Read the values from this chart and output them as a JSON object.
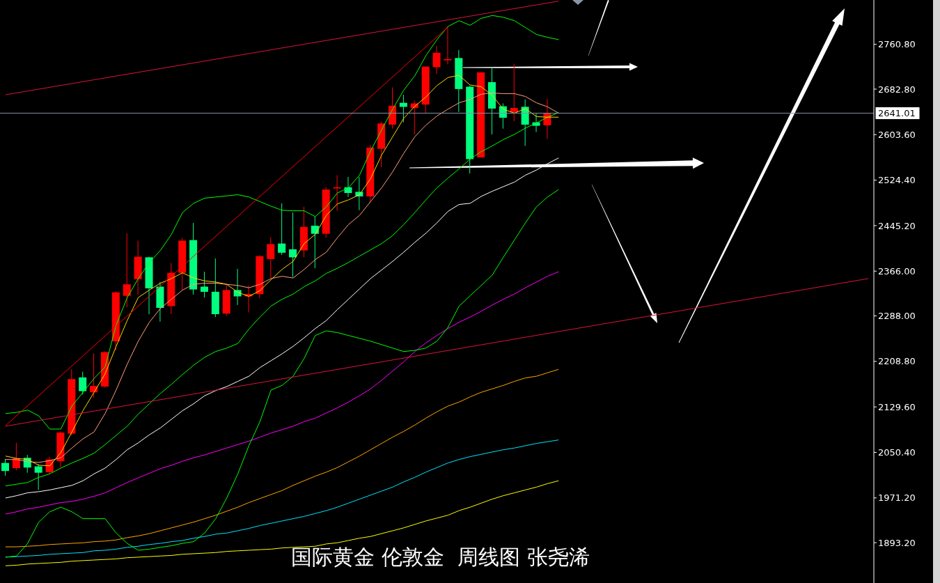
{
  "chart_data": {
    "type": "candlestick",
    "title": "国际黄金 伦敦金  周线图 张尧浠",
    "tick_labels": "y",
    "categories": [
      null,
      null,
      null,
      null,
      null,
      null,
      null,
      null,
      null,
      null,
      null,
      null,
      null,
      null,
      null,
      null,
      null,
      null,
      null,
      null,
      null,
      null,
      null,
      null,
      null,
      null,
      null,
      null,
      null,
      null,
      null,
      null,
      null,
      null,
      null,
      null,
      null,
      null,
      null,
      null,
      null,
      null,
      null,
      null,
      null,
      null,
      null,
      null,
      null,
      null,
      null,
      null,
      null,
      null,
      null,
      null,
      null,
      null,
      null,
      null,
      null,
      null,
      null,
      null,
      null,
      null,
      null,
      null,
      null,
      null,
      null,
      null,
      null,
      null,
      null,
      null,
      null,
      null,
      null
    ],
    "ohlc": [
      [
        2032,
        2039,
        2010,
        2018
      ],
      [
        2023,
        2067,
        2019,
        2040
      ],
      [
        2041,
        2046,
        2015,
        2024
      ],
      [
        2026,
        2030,
        1985,
        2015
      ],
      [
        2016,
        2043,
        2013,
        2038
      ],
      [
        2035,
        2087,
        2024,
        2085
      ],
      [
        2083,
        2195,
        2080,
        2178
      ],
      [
        2181,
        2191,
        2151,
        2157
      ],
      [
        2155,
        2223,
        2146,
        2166
      ],
      [
        2165,
        2226,
        2163,
        2225
      ],
      [
        2244,
        2331,
        2228,
        2329
      ],
      [
        2323,
        2432,
        2303,
        2343
      ],
      [
        2352,
        2419,
        2325,
        2391
      ],
      [
        2390,
        2391,
        2291,
        2336
      ],
      [
        2339,
        2347,
        2278,
        2302
      ],
      [
        2305,
        2380,
        2291,
        2363
      ],
      [
        2363,
        2424,
        2333,
        2419
      ],
      [
        2420,
        2450,
        2325,
        2334
      ],
      [
        2339,
        2365,
        2320,
        2330
      ],
      [
        2330,
        2388,
        2286,
        2291
      ],
      [
        2292,
        2342,
        2288,
        2333
      ],
      [
        2333,
        2370,
        2307,
        2322
      ],
      [
        2322,
        2341,
        2294,
        2326
      ],
      [
        2326,
        2394,
        2319,
        2392
      ],
      [
        2387,
        2425,
        2354,
        2413
      ],
      [
        2414,
        2484,
        2394,
        2398
      ],
      [
        2404,
        2468,
        2356,
        2390
      ],
      [
        2402,
        2478,
        2390,
        2443
      ],
      [
        2445,
        2461,
        2371,
        2431
      ],
      [
        2431,
        2512,
        2424,
        2508
      ],
      [
        2510,
        2533,
        2471,
        2512
      ],
      [
        2512,
        2530,
        2495,
        2502
      ],
      [
        2504,
        2530,
        2472,
        2496
      ],
      [
        2496,
        2586,
        2485,
        2581
      ],
      [
        2579,
        2626,
        2547,
        2623
      ],
      [
        2621,
        2686,
        2614,
        2654
      ],
      [
        2659,
        2673,
        2625,
        2652
      ],
      [
        2650,
        2663,
        2604,
        2658
      ],
      [
        2656,
        2723,
        2641,
        2722
      ],
      [
        2721,
        2758,
        2709,
        2746
      ],
      [
        2733,
        2791,
        2726,
        2735
      ],
      [
        2737,
        2751,
        2643,
        2683
      ],
      [
        2687,
        2689,
        2536,
        2561
      ],
      [
        2564,
        2712,
        2564,
        2712
      ],
      [
        2695,
        2721,
        2604,
        2649
      ],
      [
        2653,
        2658,
        2614,
        2633
      ],
      [
        2643,
        2727,
        2627,
        2650
      ],
      [
        2652,
        2665,
        2584,
        2621
      ],
      [
        2625,
        2640,
        2608,
        2619
      ],
      [
        2620,
        2666,
        2596,
        2641
      ],
      null,
      null,
      null,
      null,
      null,
      null,
      null,
      null,
      null,
      null,
      null,
      null,
      null,
      null,
      null,
      null,
      null,
      null,
      null,
      null,
      null,
      null,
      null,
      null,
      null,
      null,
      null,
      null,
      null
    ],
    "colors": [
      "#00ff7f",
      "#ff0000",
      "#00ff7f",
      "#00ff7f",
      "#ff0000",
      "#ff0000",
      "#ff0000",
      "#00ff7f",
      "#ff0000",
      "#ff0000",
      "#ff0000",
      "#ff0000",
      "#ff0000",
      "#00ff7f",
      "#00ff7f",
      "#ff0000",
      "#ff0000",
      "#00ff7f",
      "#00ff7f",
      "#00ff7f",
      "#ff0000",
      "#00ff7f",
      "#ff0000",
      "#ff0000",
      "#ff0000",
      "#00ff7f",
      "#00ff7f",
      "#ff0000",
      "#00ff7f",
      "#ff0000",
      "#ff0000",
      "#00ff7f",
      "#00ff7f",
      "#ff0000",
      "#ff0000",
      "#ff0000",
      "#00ff7f",
      "#ff0000",
      "#ff0000",
      "#ff0000",
      "#ff0000",
      "#00ff7f",
      "#00ff7f",
      "#ff0000",
      "#00ff7f",
      "#00ff7f",
      "#ff0000",
      "#00ff7f",
      "#00ff7f",
      "#ff0000",
      null,
      null,
      null,
      null,
      null,
      null,
      null,
      null,
      null,
      null,
      null,
      null,
      null,
      null,
      null,
      null,
      null,
      null,
      null,
      null,
      null,
      null,
      null,
      null,
      null,
      null,
      null,
      null,
      null
    ],
    "series": [
      {
        "type": "line",
        "color": "#ffff00",
        "values": [
          1853,
          1854,
          1856,
          1857,
          1858,
          1859,
          1861,
          1862,
          1863,
          1864,
          1865,
          1867,
          1868,
          1869,
          1870,
          1871,
          1873,
          1874,
          1875,
          1876,
          1878,
          1879,
          1880,
          1881,
          1882,
          1884,
          1885,
          1886,
          1887,
          1891,
          1893,
          1897,
          1901,
          1904,
          1909,
          1914,
          1919,
          1925,
          1931,
          1936,
          1941,
          1949,
          1955,
          1962,
          1969,
          1975,
          1980,
          1985,
          1990,
          1996,
          2001,
          null,
          null,
          null,
          null,
          null,
          null,
          null,
          null,
          null,
          null,
          null,
          null,
          null,
          null,
          null,
          null,
          null,
          null,
          null,
          null,
          null,
          null,
          null,
          null,
          null,
          null,
          null,
          null
        ]
      },
      {
        "type": "line",
        "color": "#00e5ff",
        "values": [
          1868,
          1869,
          1870,
          1871,
          1873,
          1874,
          1875,
          1876,
          1879,
          1880,
          1882,
          1885,
          1887,
          1890,
          1892,
          1895,
          1897,
          1901,
          1904,
          1908,
          1910,
          1914,
          1918,
          1923,
          1927,
          1931,
          1935,
          1939,
          1944,
          1949,
          1955,
          1962,
          1969,
          1976,
          1983,
          1990,
          1999,
          2007,
          2016,
          2024,
          2032,
          2038,
          2043,
          2047,
          2051,
          2055,
          2058,
          2062,
          2066,
          2069,
          2072,
          null,
          null,
          null,
          null,
          null,
          null,
          null,
          null,
          null,
          null,
          null,
          null,
          null,
          null,
          null,
          null,
          null,
          null,
          null,
          null,
          null,
          null,
          null,
          null,
          null,
          null,
          null,
          null
        ]
      },
      {
        "type": "line",
        "color": "#ffa500",
        "values": [
          1886,
          1886,
          1887,
          1888,
          1890,
          1891,
          1892,
          1893,
          1895,
          1896,
          1898,
          1902,
          1905,
          1909,
          1914,
          1919,
          1924,
          1929,
          1935,
          1941,
          1948,
          1955,
          1963,
          1970,
          1977,
          1984,
          1993,
          2001,
          2009,
          2016,
          2024,
          2034,
          2044,
          2055,
          2066,
          2077,
          2087,
          2098,
          2110,
          2121,
          2131,
          2138,
          2147,
          2155,
          2161,
          2167,
          2174,
          2180,
          2183,
          2189,
          2195,
          null,
          null,
          null,
          null,
          null,
          null,
          null,
          null,
          null,
          null,
          null,
          null,
          null,
          null,
          null,
          null,
          null,
          null,
          null,
          null,
          null,
          null,
          null,
          null,
          null,
          null,
          null,
          null
        ]
      },
      {
        "type": "line",
        "color": "#ff00ff",
        "values": [
          1943,
          1947,
          1952,
          1955,
          1959,
          1963,
          1965,
          1969,
          1974,
          1980,
          1989,
          1998,
          2006,
          2014,
          2022,
          2028,
          2035,
          2041,
          2046,
          2052,
          2058,
          2064,
          2070,
          2077,
          2084,
          2090,
          2096,
          2104,
          2110,
          2119,
          2128,
          2138,
          2149,
          2161,
          2176,
          2192,
          2208,
          2226,
          2241,
          2254,
          2266,
          2277,
          2286,
          2296,
          2307,
          2317,
          2326,
          2337,
          2347,
          2357,
          2365,
          null,
          null,
          null,
          null,
          null,
          null,
          null,
          null,
          null,
          null,
          null,
          null,
          null,
          null,
          null,
          null,
          null,
          null,
          null,
          null,
          null,
          null,
          null,
          null,
          null,
          null,
          null,
          null
        ]
      },
      {
        "type": "line",
        "color": "#ffffff",
        "values": [
          1971,
          1975,
          1980,
          1982,
          1985,
          1989,
          1993,
          2001,
          2013,
          2023,
          2038,
          2055,
          2067,
          2081,
          2093,
          2108,
          2123,
          2135,
          2149,
          2158,
          2165,
          2174,
          2183,
          2198,
          2210,
          2222,
          2235,
          2250,
          2266,
          2280,
          2299,
          2317,
          2335,
          2353,
          2368,
          2383,
          2399,
          2416,
          2432,
          2450,
          2470,
          2482,
          2484,
          2496,
          2505,
          2513,
          2521,
          2533,
          2542,
          2553,
          2563,
          null,
          null,
          null,
          null,
          null,
          null,
          null,
          null,
          null,
          null,
          null,
          null,
          null,
          null,
          null,
          null,
          null,
          null,
          null,
          null,
          null,
          null,
          null,
          null,
          null,
          null,
          null,
          null
        ]
      },
      {
        "type": "line",
        "color": "#00ff00",
        "values": [
          1868,
          1870,
          1892,
          1929,
          1947,
          1955,
          1947,
          1935,
          1935,
          1935,
          1910,
          1892,
          1880,
          1882,
          1885,
          1888,
          1892,
          1895,
          1910,
          1935,
          1971,
          2013,
          2062,
          2104,
          2159,
          2167,
          2183,
          2214,
          2254,
          2262,
          2259,
          2254,
          2249,
          2244,
          2238,
          2232,
          2226,
          2228,
          2232,
          2244,
          2268,
          2305,
          2323,
          2341,
          2359,
          2390,
          2420,
          2450,
          2478,
          2495,
          2508,
          null,
          null,
          null,
          null,
          null,
          null,
          null,
          null,
          null,
          null,
          null,
          null,
          null,
          null,
          null,
          null,
          null,
          null,
          null,
          null,
          null,
          null,
          null,
          null,
          null,
          null,
          null,
          null
        ]
      },
      {
        "type": "line",
        "color": "#00ff00",
        "values": [
          1992,
          1995,
          1998,
          2007,
          2013,
          2023,
          2032,
          2040,
          2049,
          2064,
          2080,
          2096,
          2117,
          2135,
          2153,
          2169,
          2186,
          2202,
          2216,
          2226,
          2232,
          2240,
          2265,
          2286,
          2305,
          2317,
          2326,
          2339,
          2349,
          2362,
          2371,
          2381,
          2392,
          2403,
          2414,
          2428,
          2447,
          2468,
          2490,
          2511,
          2528,
          2544,
          2561,
          2574,
          2584,
          2595,
          2604,
          2615,
          2624,
          2634,
          2642,
          null,
          null,
          null,
          null,
          null,
          null,
          null,
          null,
          null,
          null,
          null,
          null,
          null,
          null,
          null,
          null,
          null,
          null,
          null,
          null,
          null,
          null,
          null,
          null,
          null,
          null,
          null,
          null
        ]
      },
      {
        "type": "line",
        "color": "#00ff00",
        "values": [
          2118,
          2120,
          2124,
          2114,
          2091,
          2091,
          2131,
          2155,
          2179,
          2199,
          2272,
          2320,
          2353,
          2381,
          2402,
          2430,
          2468,
          2484,
          2493,
          2495,
          2497,
          2499,
          2495,
          2487,
          2479,
          2472,
          2471,
          2471,
          2461,
          2478,
          2502,
          2511,
          2533,
          2575,
          2612,
          2648,
          2681,
          2706,
          2741,
          2769,
          2792,
          2802,
          2794,
          2806,
          2811,
          2808,
          2802,
          2790,
          2778,
          2773,
          2769,
          null,
          null,
          null,
          null,
          null,
          null,
          null,
          null,
          null,
          null,
          null,
          null,
          null,
          null,
          null,
          null,
          null,
          null,
          null,
          null,
          null,
          null,
          null,
          null,
          null,
          null,
          null,
          null
        ]
      },
      {
        "type": "line",
        "color": "#ffa07a",
        "values": [
          2038,
          2038,
          2034,
          2033,
          2036,
          2041,
          2058,
          2074,
          2086,
          2118,
          2159,
          2204,
          2244,
          2277,
          2301,
          2317,
          2333,
          2343,
          2345,
          2345,
          2343,
          2341,
          2337,
          2343,
          2353,
          2357,
          2354,
          2369,
          2386,
          2399,
          2424,
          2447,
          2463,
          2487,
          2511,
          2539,
          2571,
          2600,
          2620,
          2636,
          2648,
          2659,
          2665,
          2674,
          2676,
          2675,
          2675,
          2670,
          2659,
          2652,
          2641,
          null,
          null,
          null,
          null,
          null,
          null,
          null,
          null,
          null,
          null,
          null,
          null,
          null,
          null,
          null,
          null,
          null,
          null,
          null,
          null,
          null,
          null,
          null,
          null,
          null,
          null,
          null,
          null
        ]
      },
      {
        "type": "line",
        "color": "#ffd700",
        "values": [
          2044,
          2040,
          2038,
          2028,
          2027,
          2050,
          2086,
          2123,
          2155,
          2187,
          2235,
          2280,
          2320,
          2333,
          2345,
          2353,
          2363,
          2354,
          2349,
          2347,
          2343,
          2329,
          2322,
          2332,
          2351,
          2369,
          2383,
          2414,
          2430,
          2463,
          2483,
          2490,
          2499,
          2527,
          2568,
          2600,
          2632,
          2653,
          2669,
          2689,
          2703,
          2707,
          2690,
          2687,
          2672,
          2648,
          2641,
          2649,
          2635,
          2634,
          2634,
          null,
          null,
          null,
          null,
          null,
          null,
          null,
          null,
          null,
          null,
          null,
          null,
          null,
          null,
          null,
          null,
          null,
          null,
          null,
          null,
          null,
          null,
          null,
          null,
          null,
          null,
          null,
          null
        ]
      },
      {
        "type": "line",
        "color": "#dc143c",
        "values": [
          2673,
          null,
          null,
          null,
          null,
          null,
          null,
          null,
          null,
          null,
          null,
          null,
          null,
          null,
          null,
          null,
          null,
          null,
          null,
          null,
          null,
          null,
          null,
          null,
          null,
          null,
          null,
          null,
          null,
          null,
          null,
          null,
          null,
          null,
          null,
          null,
          null,
          null,
          null,
          null,
          null,
          null,
          null,
          null,
          null,
          null,
          null,
          null,
          null,
          null,
          2836,
          null,
          null,
          null,
          null,
          null,
          null,
          null,
          null,
          null,
          null,
          null,
          null,
          null,
          null,
          null,
          null,
          null,
          null,
          null,
          null,
          null,
          null,
          null,
          null,
          null,
          null,
          null,
          null
        ]
      },
      {
        "type": "line",
        "color": "#ff0000",
        "values": [
          2097,
          null,
          null,
          null,
          null,
          null,
          null,
          null,
          null,
          null,
          null,
          null,
          null,
          null,
          null,
          null,
          null,
          null,
          null,
          null,
          null,
          null,
          null,
          null,
          null,
          null,
          null,
          null,
          null,
          null,
          null,
          null,
          null,
          null,
          null,
          null,
          null,
          null,
          null,
          null,
          2791,
          null,
          null,
          null,
          null,
          null,
          null,
          null,
          null,
          null,
          null,
          null,
          null,
          null,
          null,
          null,
          null,
          null,
          null,
          null,
          null,
          null,
          null,
          null,
          null,
          null,
          null,
          null,
          null,
          null,
          null,
          null,
          null,
          null,
          null,
          null,
          null,
          null,
          null
        ]
      },
      {
        "type": "line",
        "color": "#dc143c",
        "values": [
          2096,
          null,
          null,
          null,
          null,
          null,
          null,
          null,
          null,
          null,
          null,
          null,
          null,
          null,
          null,
          null,
          null,
          null,
          null,
          null,
          null,
          null,
          null,
          null,
          null,
          null,
          null,
          null,
          null,
          null,
          null,
          null,
          null,
          null,
          null,
          null,
          null,
          null,
          null,
          null,
          null,
          null,
          null,
          null,
          null,
          null,
          null,
          null,
          null,
          null,
          null,
          null,
          null,
          null,
          null,
          null,
          null,
          null,
          null,
          null,
          null,
          null,
          null,
          null,
          null,
          null,
          null,
          null,
          null,
          null,
          null,
          null,
          null,
          null,
          null,
          null,
          null,
          null,
          2353
        ]
      }
    ],
    "ylim": [
      1823,
      2838
    ],
    "yticks": [
      {
        "value": 1893.2,
        "label": "1893.20"
      },
      {
        "value": 1971.2,
        "label": "1971.20"
      },
      {
        "value": 2050.4,
        "label": "2050.40"
      },
      {
        "value": 2129.6,
        "label": "2129.60"
      },
      {
        "value": 2208.8,
        "label": "2208.80"
      },
      {
        "value": 2288,
        "label": "2288.00"
      },
      {
        "value": 2366,
        "label": "2366.00"
      },
      {
        "value": 2445.2,
        "label": "2445.20"
      },
      {
        "value": 2524.4,
        "label": "2524.40"
      },
      {
        "value": 2603.6,
        "label": "2603.60"
      },
      {
        "value": 2682.8,
        "label": "2682.80"
      },
      {
        "value": 2760.8,
        "label": "2760.80"
      }
    ],
    "ref_lines": [
      {
        "axis": "y",
        "value": 2641.01,
        "label": "2641.01",
        "color": "#8592a8"
      }
    ]
  }
}
